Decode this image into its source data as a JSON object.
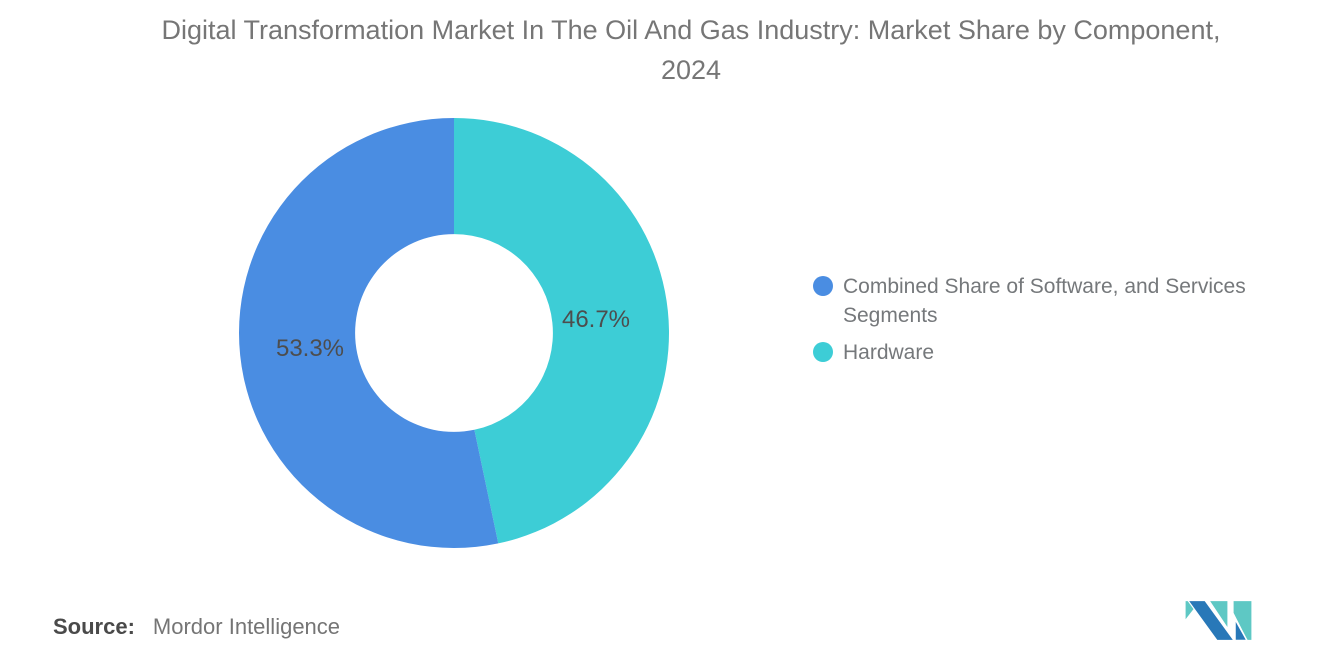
{
  "chart_data": {
    "type": "pie",
    "title": "Digital Transformation Market In The Oil And Gas Industry: Market Share by Component, 2024",
    "categories": [
      "Combined Share of Software, and Services Segments",
      "Hardware"
    ],
    "values": [
      53.3,
      46.7
    ],
    "data_labels": [
      "53.3%",
      "46.7%"
    ],
    "colors": [
      "#4a8de2",
      "#3dcdd6"
    ],
    "donut_hole_ratio": 0.46,
    "start_angle_deg": 0,
    "direction": "counterclockwise",
    "legend_position": "right",
    "grid": false
  },
  "legend": {
    "items": [
      {
        "label": "Combined Share of Software, and Services Segments",
        "color": "#4a8de2"
      },
      {
        "label": "Hardware",
        "color": "#3dcdd6"
      }
    ]
  },
  "source": {
    "label": "Source:",
    "name": "Mordor Intelligence"
  },
  "logo": {
    "name": "mordor-intelligence-logo",
    "teal": "#5ec8c4",
    "blue": "#2878b8"
  },
  "styles": {
    "title_color": "#767676",
    "data_label_color": "#4d4d4d",
    "legend_text_color": "#75787b",
    "background": "#ffffff"
  }
}
